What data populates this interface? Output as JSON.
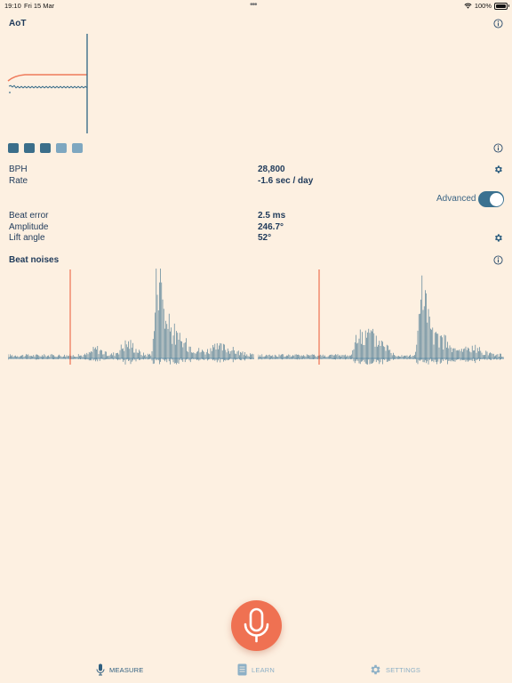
{
  "status_bar": {
    "time": "19:10",
    "date": "Fri 15 Mar",
    "battery": "100%",
    "battery_level": 1.0
  },
  "aot": {
    "title": "AoT",
    "info_icon": "info-icon"
  },
  "indicator_dots": {
    "colors": [
      "#3b6e8a",
      "#3b6e8a",
      "#3b6e8a",
      "#7ea7c0",
      "#7ea7c0"
    ],
    "info_icon": "info-icon"
  },
  "measurements": {
    "bph_label": "BPH",
    "bph_value": "28,800",
    "rate_label": "Rate",
    "rate_value": "-1.6 sec / day",
    "advanced_label": "Advanced",
    "advanced_on": true,
    "beat_error_label": "Beat error",
    "beat_error_value": "2.5 ms",
    "amplitude_label": "Amplitude",
    "amplitude_value": "246.7°",
    "lift_angle_label": "Lift angle",
    "lift_angle_value": "52°"
  },
  "beat_noises": {
    "title": "Beat noises",
    "info_icon": "info-icon"
  },
  "tabs": [
    {
      "label": "MEASURE",
      "icon": "microphone-icon",
      "active": true
    },
    {
      "label": "LEARN",
      "icon": "book-icon",
      "active": false
    },
    {
      "label": "SETTINGS",
      "icon": "gear-icon",
      "active": false
    }
  ],
  "colors": {
    "background": "#fdf0e1",
    "accent_orange": "#ef7152",
    "teal": "#3b6e8a",
    "text": "#1f3a5a"
  }
}
